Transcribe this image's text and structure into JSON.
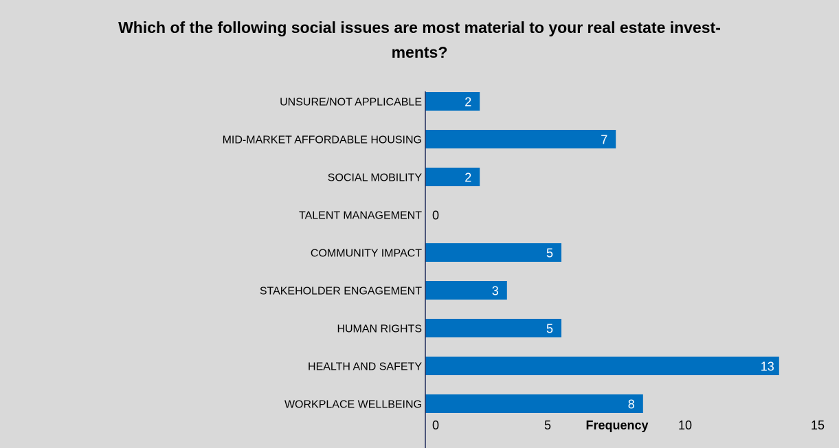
{
  "chart_data": {
    "type": "bar",
    "orientation": "horizontal",
    "title_line1": "Which of the following social issues are most material to your real estate invest-",
    "title_line2": "ments?",
    "xlabel": "Frequency",
    "ylabel": "",
    "categories": [
      "UNSURE/NOT APPLICABLE",
      "MID-MARKET AFFORDABLE HOUSING",
      "SOCIAL MOBILITY",
      "TALENT MANAGEMENT",
      "COMMUNITY IMPACT",
      "STAKEHOLDER ENGAGEMENT",
      "HUMAN RIGHTS",
      "HEALTH AND SAFETY",
      "WORKPLACE WELLBEING"
    ],
    "values": [
      2,
      7,
      2,
      0,
      5,
      3,
      5,
      13,
      8
    ],
    "xlim": [
      0,
      15
    ],
    "xticks": [
      "0",
      "5",
      "10",
      "15"
    ],
    "grid": false,
    "legend": "none",
    "bar_color": "#0070c0"
  }
}
